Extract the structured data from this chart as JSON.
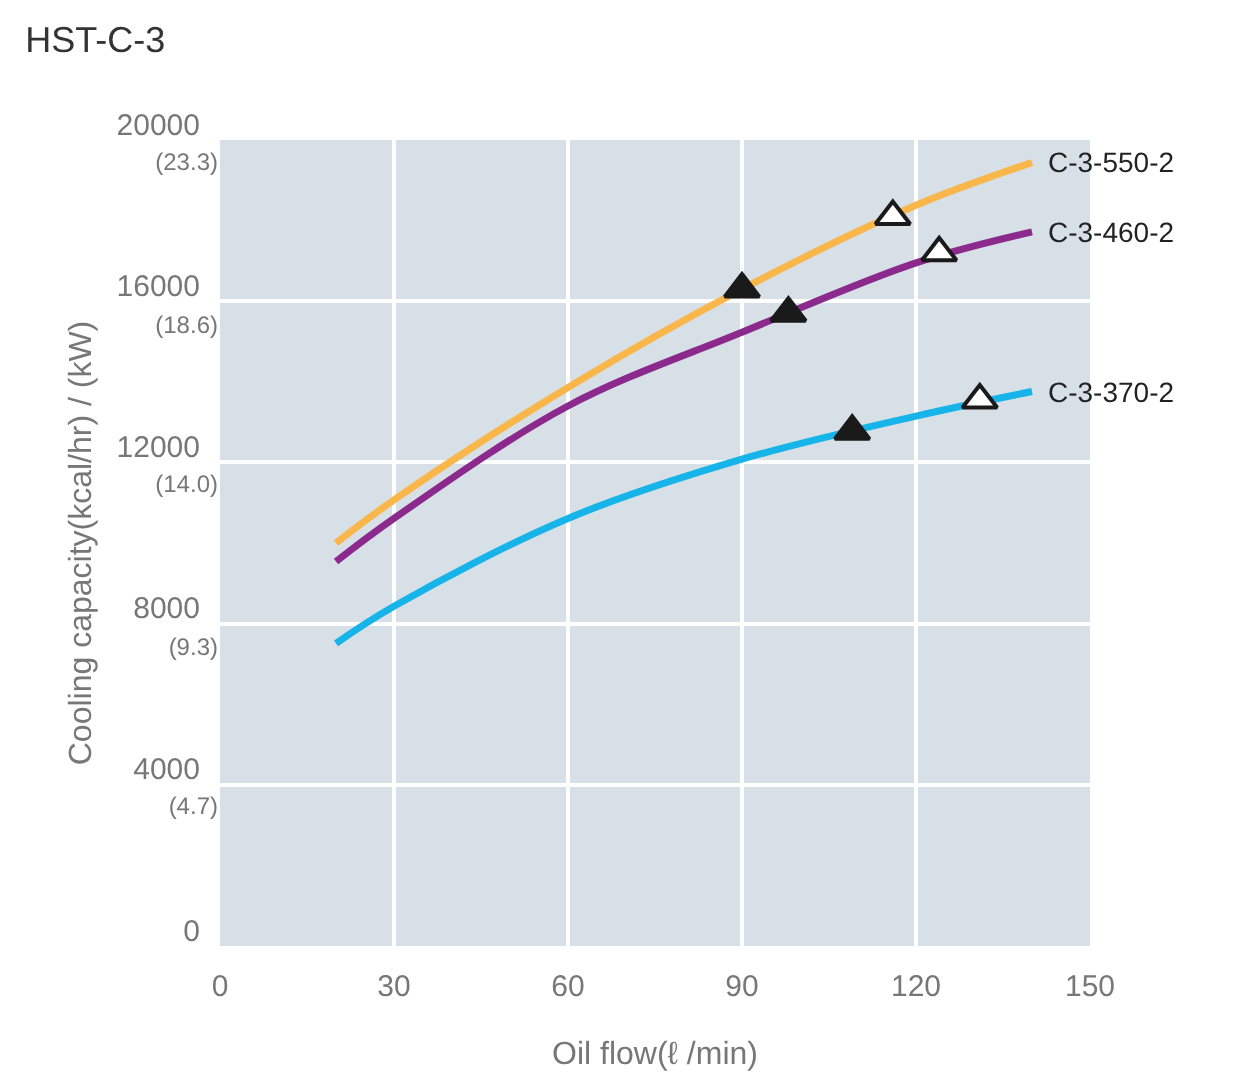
{
  "chart_data": {
    "type": "line",
    "title": "HST-C-3",
    "xlabel": "Oil flow(ℓ /min)",
    "ylabel": "Cooling capacity(kcal/hr) / (kW)",
    "xlim": [
      0,
      150
    ],
    "xticks": [
      0,
      30,
      60,
      90,
      120,
      150
    ],
    "ylim": [
      0,
      20000
    ],
    "yticks": [
      0,
      4000,
      8000,
      12000,
      16000,
      20000
    ],
    "y2lim": [
      0,
      23.3
    ],
    "y2ticks": [
      {
        "value": 4.7,
        "label": "(4.7)"
      },
      {
        "value": 9.3,
        "label": "(9.3)"
      },
      {
        "value": 14.0,
        "label": "(14.0)"
      },
      {
        "value": 18.6,
        "label": "(18.6)"
      },
      {
        "value": 23.3,
        "label": "(23.3)"
      }
    ],
    "grid": true,
    "legend": false,
    "marker": "none",
    "line_style": "solid",
    "series": [
      {
        "name": "C-3-550-2",
        "color": "#f9b64a",
        "x": [
          20,
          30,
          60,
          90,
          120,
          140
        ],
        "values": [
          10000,
          11070,
          13860,
          16300,
          18380,
          19440
        ]
      },
      {
        "name": "C-3-460-2",
        "color": "#8b2a8c",
        "x": [
          20,
          30,
          60,
          90,
          120,
          140
        ],
        "values": [
          9540,
          10610,
          13400,
          15230,
          16950,
          17720
        ]
      },
      {
        "name": "C-3-370-2",
        "color": "#16b4e8",
        "x": [
          20,
          30,
          60,
          90,
          120,
          140
        ],
        "values": [
          7510,
          8430,
          10610,
          12080,
          13150,
          13760
        ]
      },
      {
        "type": "scatter",
        "marker": "triangle",
        "color": "#1a1a1a",
        "x": [
          90,
          98,
          109
        ],
        "values": [
          16300,
          15700,
          12770
        ]
      },
      {
        "type": "scatter",
        "marker": "triangle",
        "color": "#ffffff",
        "x": [
          116,
          124,
          131
        ],
        "values": [
          18100,
          17200,
          13550
        ]
      }
    ]
  }
}
